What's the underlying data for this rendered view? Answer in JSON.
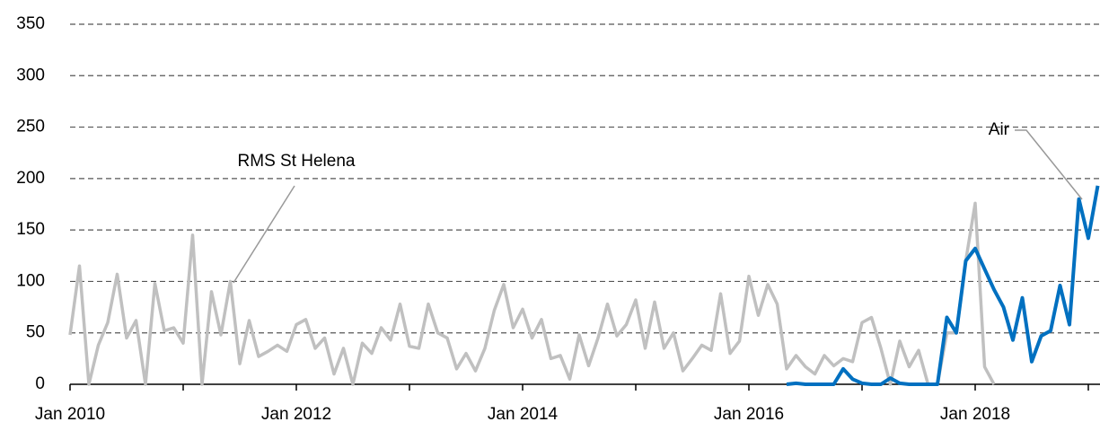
{
  "chart_data": {
    "type": "line",
    "categories": [
      "Jan 2010",
      null,
      null,
      null,
      null,
      null,
      null,
      null,
      null,
      null,
      null,
      null,
      null,
      null,
      null,
      null,
      null,
      null,
      null,
      null,
      null,
      null,
      null,
      null,
      "Jan 2012",
      null,
      null,
      null,
      null,
      null,
      null,
      null,
      null,
      null,
      null,
      null,
      null,
      null,
      null,
      null,
      null,
      null,
      null,
      null,
      null,
      null,
      null,
      null,
      "Jan 2014",
      null,
      null,
      null,
      null,
      null,
      null,
      null,
      null,
      null,
      null,
      null,
      null,
      null,
      null,
      null,
      null,
      null,
      null,
      null,
      null,
      null,
      null,
      null,
      "Jan 2016",
      null,
      null,
      null,
      null,
      null,
      null,
      null,
      null,
      null,
      null,
      null,
      null,
      null,
      null,
      null,
      null,
      null,
      null,
      null,
      null,
      null,
      null,
      null,
      "Jan 2018",
      null,
      null,
      null,
      null,
      null,
      null,
      null,
      null,
      null,
      null,
      null,
      null,
      null
    ],
    "series": [
      {
        "name": "RMS St Helena",
        "color": "#c0c0c0",
        "values": [
          48,
          115,
          0,
          38,
          60,
          107,
          45,
          62,
          0,
          98,
          52,
          55,
          40,
          145,
          0,
          90,
          48,
          100,
          20,
          62,
          27,
          32,
          38,
          32,
          58,
          63,
          35,
          45,
          10,
          35,
          0,
          40,
          30,
          55,
          43,
          78,
          37,
          35,
          78,
          50,
          45,
          15,
          30,
          13,
          35,
          72,
          97,
          55,
          73,
          45,
          63,
          25,
          28,
          5,
          48,
          18,
          45,
          78,
          47,
          58,
          82,
          35,
          80,
          35,
          50,
          13,
          25,
          38,
          33,
          88,
          30,
          42,
          105,
          67,
          97,
          78,
          15,
          28,
          17,
          10,
          28,
          18,
          25,
          22,
          60,
          65,
          35,
          0,
          42,
          17,
          33,
          0,
          0,
          50,
          50,
          120,
          176,
          17,
          0,
          null,
          null,
          null,
          null,
          null,
          null,
          null,
          null,
          null,
          null,
          null
        ]
      },
      {
        "name": "Air",
        "color": "#0070c0",
        "values": [
          null,
          null,
          null,
          null,
          null,
          null,
          null,
          null,
          null,
          null,
          null,
          null,
          null,
          null,
          null,
          null,
          null,
          null,
          null,
          null,
          null,
          null,
          null,
          null,
          null,
          null,
          null,
          null,
          null,
          null,
          null,
          null,
          null,
          null,
          null,
          null,
          null,
          null,
          null,
          null,
          null,
          null,
          null,
          null,
          null,
          null,
          null,
          null,
          null,
          null,
          null,
          null,
          null,
          null,
          null,
          null,
          null,
          null,
          null,
          null,
          null,
          null,
          null,
          null,
          null,
          null,
          null,
          null,
          null,
          null,
          null,
          null,
          null,
          null,
          null,
          null,
          0,
          1,
          0,
          0,
          0,
          0,
          15,
          5,
          1,
          0,
          0,
          6,
          1,
          0,
          0,
          0,
          0,
          65,
          50,
          120,
          132,
          112,
          92,
          75,
          43,
          84,
          22,
          47,
          52,
          96,
          58,
          180,
          142,
          193
        ]
      }
    ],
    "ylim": [
      0,
      350
    ],
    "yticks": [
      0,
      50,
      100,
      150,
      200,
      250,
      300,
      350
    ],
    "grid": true
  }
}
